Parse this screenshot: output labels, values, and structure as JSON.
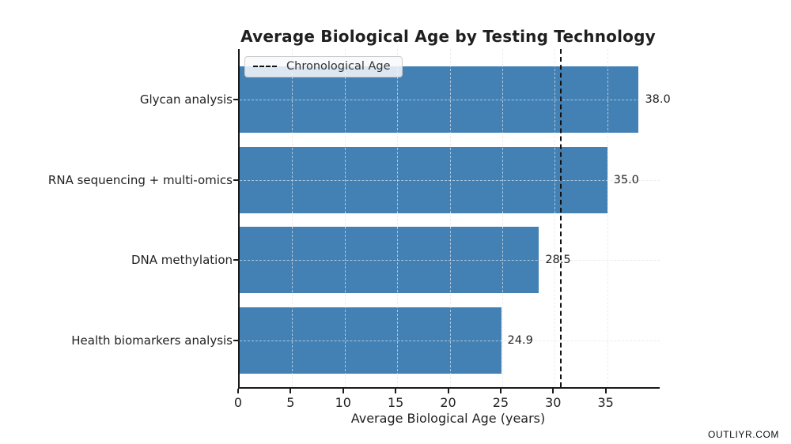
{
  "watermark": "OUTLIYR.COM",
  "chart_data": {
    "type": "bar",
    "orientation": "horizontal",
    "title": "Average Biological Age by Testing Technology",
    "xlabel": "Average Biological Age (years)",
    "categories": [
      "Glycan analysis",
      "RNA sequencing + multi-omics",
      "DNA methylation",
      "Health biomarkers analysis"
    ],
    "values": [
      38.0,
      35.0,
      28.5,
      24.9
    ],
    "value_labels": [
      "38.0",
      "35.0",
      "28.5",
      "24.9"
    ],
    "xlim": [
      0,
      40
    ],
    "xticks": [
      0,
      5,
      10,
      15,
      20,
      25,
      30,
      35
    ],
    "grid": "dashed",
    "bar_color": "#4381b5",
    "legend_position": "upper left",
    "reference_line": {
      "label": "Chronological Age",
      "value": 30.5,
      "style": "dashed",
      "color": "#111111"
    }
  }
}
